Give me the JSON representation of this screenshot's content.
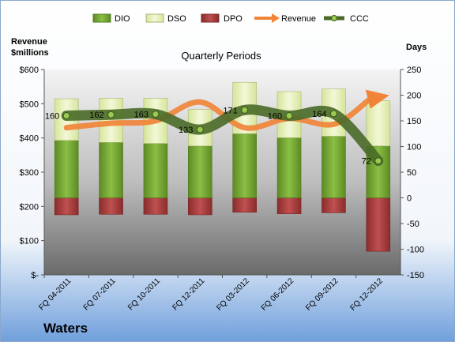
{
  "company": "Waters",
  "chart_data": {
    "type": "bar",
    "title": "Quarterly Periods",
    "left_axis_label": [
      "Revenue",
      "$millions"
    ],
    "right_axis_label": "Days",
    "categories": [
      "FQ 04-2011",
      "FQ 07-2011",
      "FQ 10-2011",
      "FQ 12-2011",
      "FQ 03-2012",
      "FQ 06-2012",
      "FQ 09-2012",
      "FQ 12-2012"
    ],
    "left_ticks": [
      "$600",
      "$500",
      "$400",
      "$300",
      "$200",
      "$100",
      "$-"
    ],
    "left_ylim": [
      0,
      600
    ],
    "right_ticks": [
      "250",
      "200",
      "150",
      "100",
      "50",
      "0",
      "-50",
      "-100",
      "-150"
    ],
    "right_ylim": [
      -150,
      250
    ],
    "legend": [
      "DIO",
      "DSO",
      "DPO",
      "Revenue",
      "CCC"
    ],
    "legend_position": "top",
    "series": [
      {
        "name": "DIO",
        "type": "bar",
        "axis": "right",
        "values": [
          112,
          108,
          106,
          101,
          125,
          117,
          120,
          101
        ]
      },
      {
        "name": "DSO",
        "type": "bar",
        "axis": "right",
        "values": [
          81,
          86,
          88,
          71,
          100,
          90,
          92,
          88
        ]
      },
      {
        "name": "DPO",
        "type": "bar",
        "axis": "right",
        "values": [
          -33,
          -32,
          -32,
          -33,
          -28,
          -31,
          -29,
          -104
        ]
      },
      {
        "name": "Revenue",
        "type": "line",
        "axis": "left",
        "values": [
          430,
          443,
          450,
          505,
          430,
          457,
          440,
          520
        ]
      },
      {
        "name": "CCC",
        "type": "line",
        "axis": "right",
        "values": [
          160,
          162,
          163,
          133,
          171,
          160,
          164,
          72
        ]
      }
    ],
    "ccc_labels": [
      "160",
      "162",
      "163",
      "133",
      "171",
      "160",
      "164",
      "72"
    ],
    "colors": {
      "DIO": "#76a032",
      "DSO": "#e6f0b4",
      "DPO": "#a83a3a",
      "Revenue": "#f0843a",
      "CCC": "#4a6a28"
    }
  }
}
